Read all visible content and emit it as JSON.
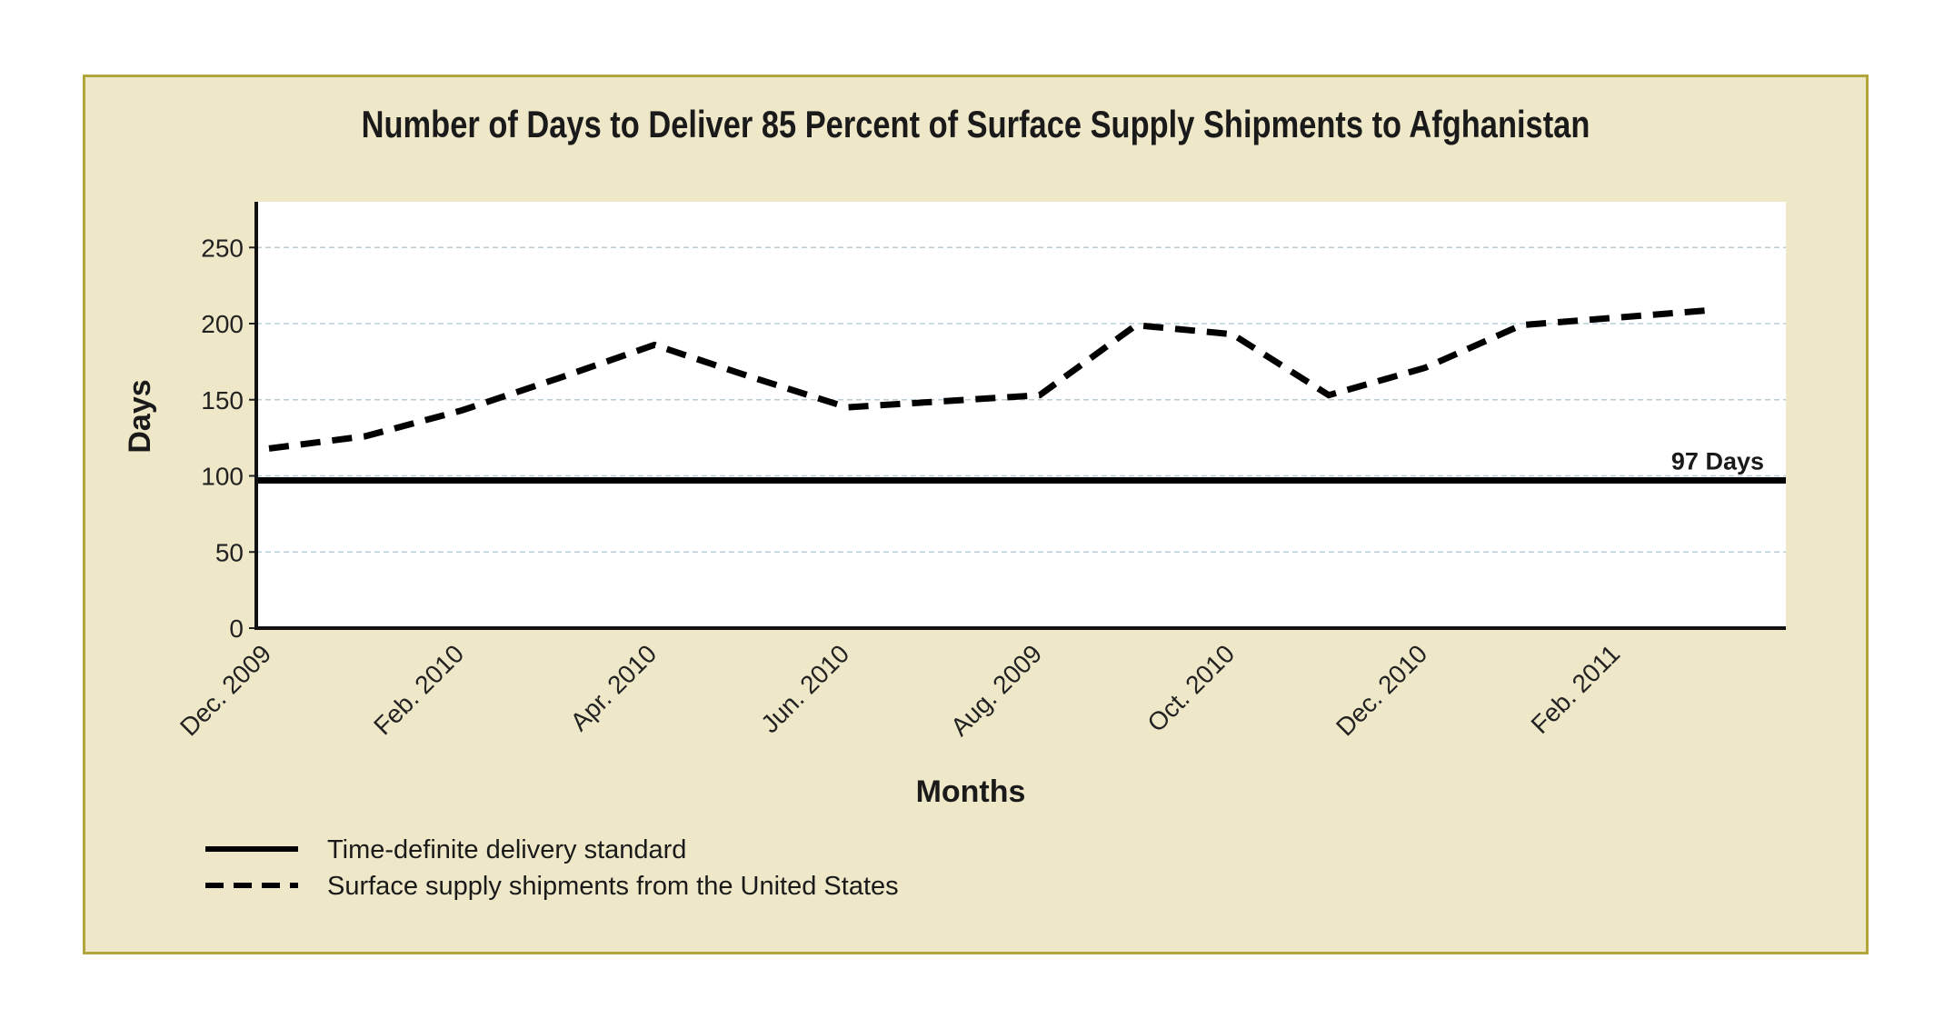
{
  "chart_data": {
    "type": "line",
    "title": "Number of Days to Deliver 85 Percent of Surface Supply Shipments to Afghanistan",
    "xlabel": "Months",
    "ylabel": "Days",
    "ylim": [
      0,
      280
    ],
    "yticks": [
      0,
      50,
      100,
      150,
      200,
      250
    ],
    "categories": [
      "Dec. 2009",
      "Feb. 2010",
      "Apr. 2010",
      "Jun. 2010",
      "Aug. 2009",
      "Oct. 2010",
      "Dec. 2010",
      "Feb. 2011"
    ],
    "series": [
      {
        "name": "Surface supply shipments from the United States",
        "style": "dashed",
        "color": "#000000",
        "x": [
          0,
          0.5,
          1.0,
          1.5,
          2.0,
          2.5,
          3.0,
          3.5,
          4.0,
          4.5,
          5.0,
          5.5,
          6.0,
          6.5,
          7.0,
          7.5
        ],
        "values": [
          118,
          126,
          143,
          164,
          186,
          165,
          145,
          149,
          153,
          199,
          193,
          153,
          171,
          199,
          204,
          209
        ]
      },
      {
        "name": "Time-definite delivery standard",
        "style": "solid",
        "color": "#000000",
        "constant": 97
      }
    ],
    "annotation": "97 Days",
    "grid": true,
    "legend_position": "bottom-left"
  },
  "colors": {
    "panel_background": "#efe8c8",
    "panel_border": "#b2a53b",
    "plot_background": "#ffffff",
    "gridline": "#b9cdd6"
  }
}
